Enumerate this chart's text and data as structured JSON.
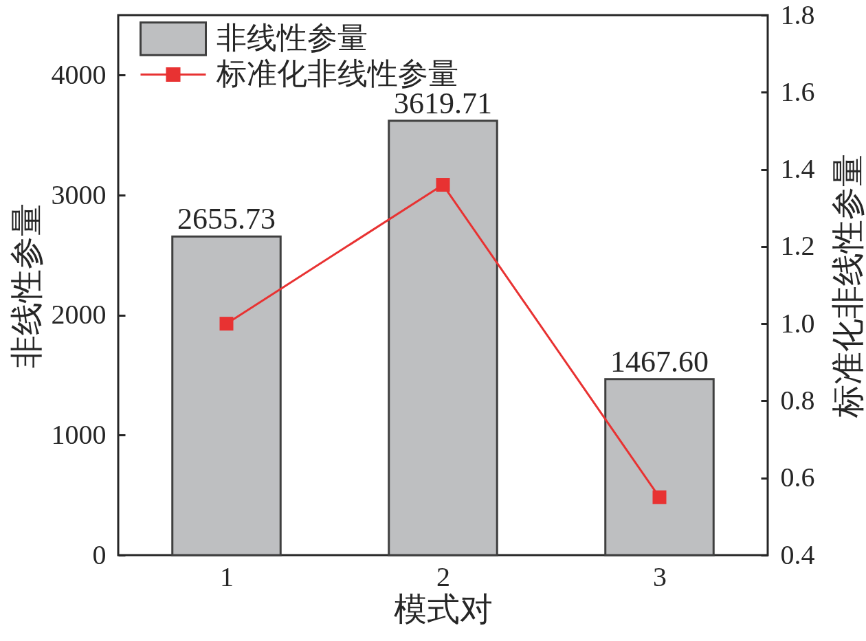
{
  "chart_data": {
    "type": "bar",
    "x": [
      1,
      2,
      3
    ],
    "xlim": [
      0.5,
      3.5
    ],
    "xticks": [
      1,
      2,
      3
    ],
    "xlabel": "模式对",
    "ylabel": "非线性参量",
    "y2label": "标准化非线性参量",
    "ylim": [
      0,
      4500
    ],
    "yticks": [
      0,
      1000,
      2000,
      3000,
      4000
    ],
    "y2lim": [
      0.4,
      1.8
    ],
    "y2ticks": [
      0.4,
      0.6,
      0.8,
      {
        "value": 1,
        "label": "1.0"
      },
      1.2,
      1.4,
      1.6,
      1.8
    ],
    "legend": "top left",
    "marker": "square",
    "line_style": "solid",
    "series": [
      {
        "name": "非线性参量",
        "color": "#bebfc1",
        "values": [
          2655.73,
          3619.71,
          1467.6
        ],
        "value_labels": [
          "2655.73",
          "3619.71",
          "1467.60"
        ]
      },
      {
        "name": "标准化非线性参量",
        "type": "line",
        "axis": "y2",
        "color": "#e83232",
        "values": [
          1.0,
          1.36,
          0.55
        ]
      }
    ]
  }
}
